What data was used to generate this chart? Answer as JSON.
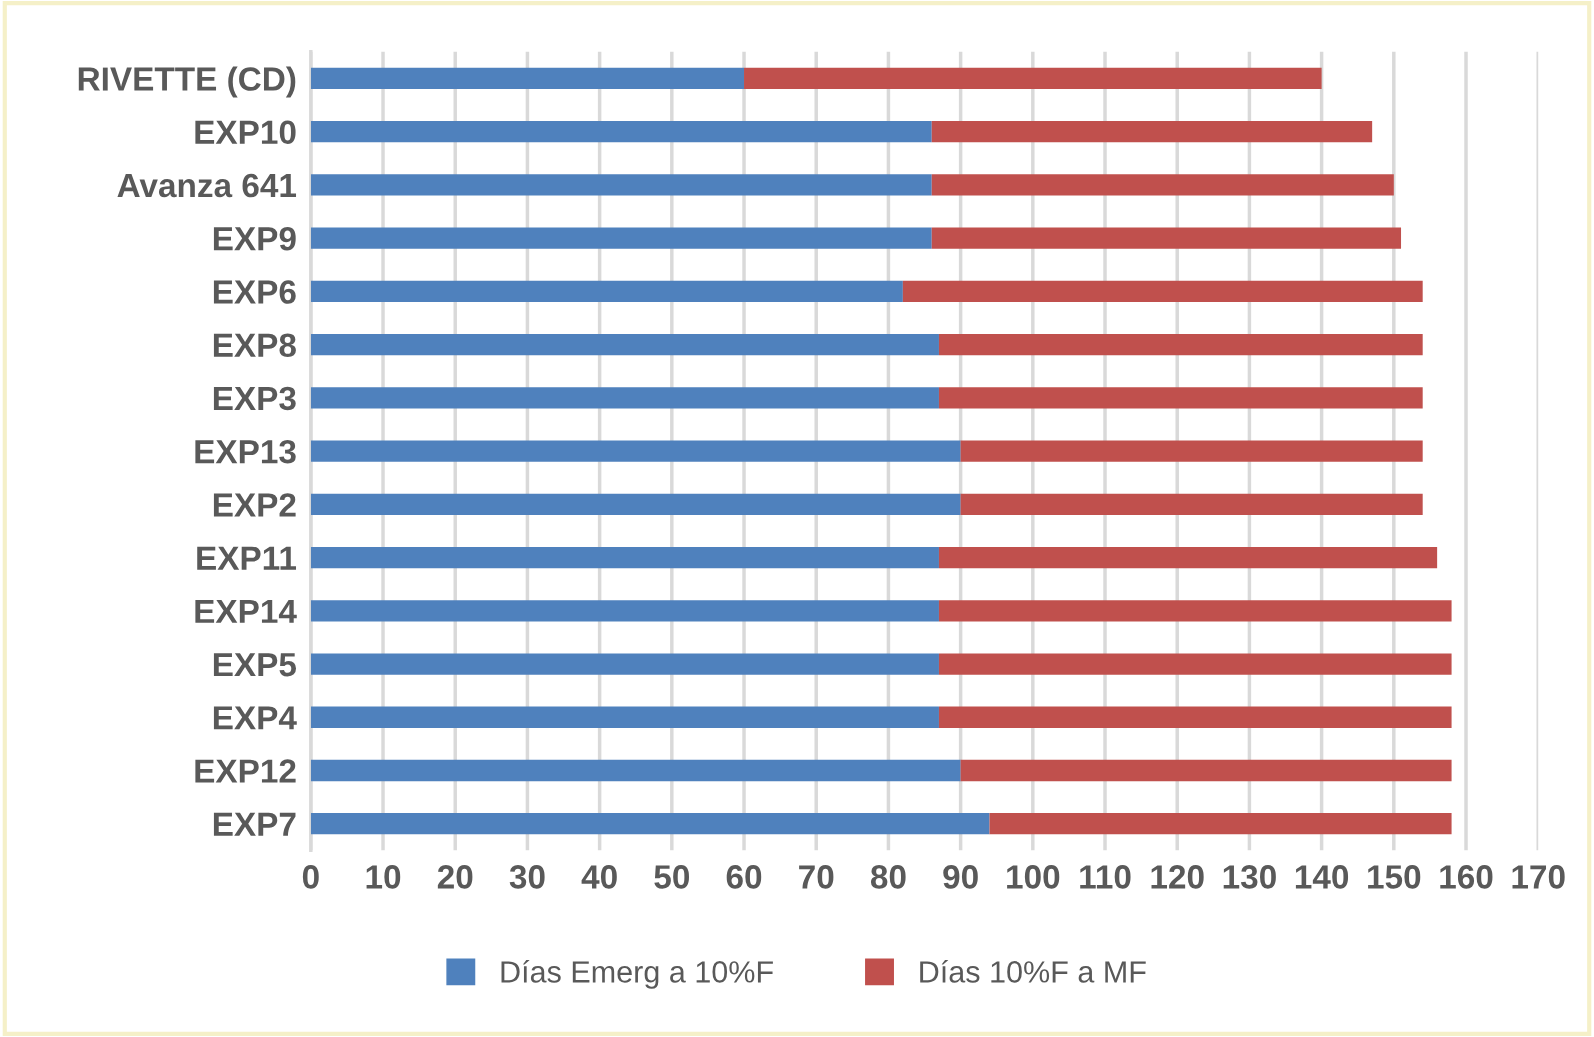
{
  "chart_data": {
    "type": "bar",
    "orientation": "horizontal",
    "stacked": true,
    "categories": [
      "RIVETTE (CD)",
      "EXP10",
      "Avanza 641",
      "EXP9",
      "EXP6",
      "EXP8",
      "EXP3",
      "EXP13",
      "EXP2",
      "EXP11",
      "EXP14",
      "EXP5",
      "EXP4",
      "EXP12",
      "EXP7"
    ],
    "series": [
      {
        "name": "Días Emerg a 10%F",
        "color": "#4f81bd",
        "values": [
          60,
          86,
          86,
          86,
          82,
          87,
          87,
          90,
          90,
          87,
          87,
          87,
          87,
          90,
          94
        ]
      },
      {
        "name": "Días 10%F a MF",
        "color": "#c0504d",
        "values": [
          80,
          61,
          64,
          65,
          72,
          67,
          67,
          64,
          64,
          69,
          71,
          71,
          71,
          68,
          64
        ]
      }
    ],
    "xlim": [
      0,
      170
    ],
    "xticks": [
      0,
      10,
      20,
      30,
      40,
      50,
      60,
      70,
      80,
      90,
      100,
      110,
      120,
      130,
      140,
      150,
      160,
      170
    ],
    "grid": "x",
    "legend": "bottom"
  }
}
